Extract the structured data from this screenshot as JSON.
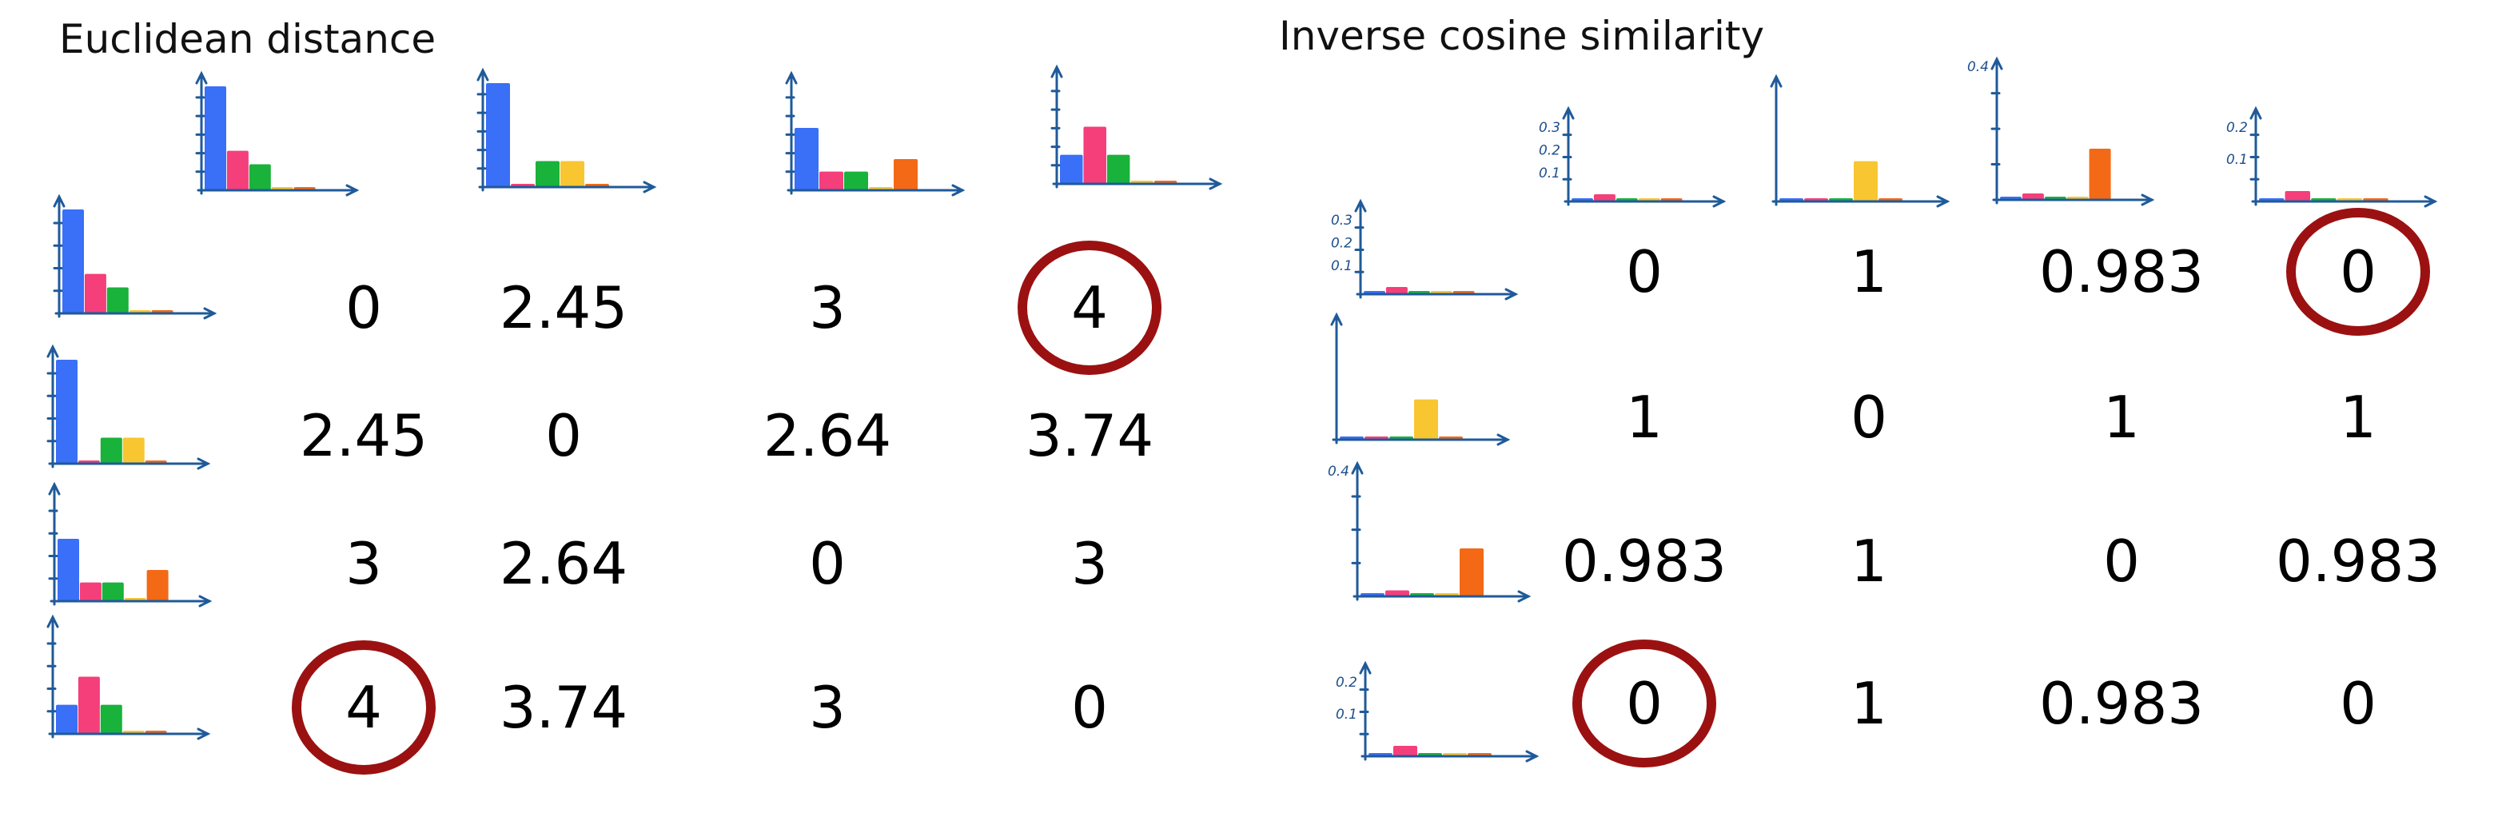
{
  "colors": {
    "blue": "#3a6ff7",
    "pink": "#f43f7a",
    "green": "#19b23b",
    "yellow": "#f8c630",
    "orange": "#f36916",
    "axis": "#1f5a99",
    "highlight": "#9b1111"
  },
  "profile_series": [
    "blue",
    "pink",
    "green",
    "yellow",
    "orange"
  ],
  "euclidean": {
    "title": "Euclidean distance",
    "profiles": [
      [
        1.0,
        0.38,
        0.25,
        0.02,
        0.02
      ],
      [
        1.0,
        0.03,
        0.25,
        0.25,
        0.02
      ],
      [
        0.6,
        0.18,
        0.18,
        0.02,
        0.3
      ],
      [
        0.28,
        0.55,
        0.28,
        0.02,
        0.02
      ]
    ],
    "matrix": [
      [
        "0",
        "2.45",
        "3",
        "4"
      ],
      [
        "2.45",
        "0",
        "2.64",
        "3.74"
      ],
      [
        "3",
        "2.64",
        "0",
        "3"
      ],
      [
        "4",
        "3.74",
        "3",
        "0"
      ]
    ],
    "circled": [
      [
        0,
        3
      ],
      [
        3,
        0
      ]
    ]
  },
  "cosine": {
    "title": "Inverse cosine similarity",
    "profiles": [
      [
        0.02,
        0.09,
        0.02,
        0.02,
        0.02
      ],
      [
        0.02,
        0.02,
        0.02,
        0.36,
        0.02
      ],
      [
        0.02,
        0.05,
        0.02,
        0.02,
        0.4
      ],
      [
        0.02,
        0.13,
        0.02,
        0.02,
        0.02
      ]
    ],
    "tick_labels": [
      [
        "0.3",
        "0.2",
        "0.1"
      ],
      [],
      [
        "0.4"
      ],
      [
        "0.2",
        "0.1"
      ]
    ],
    "matrix": [
      [
        "0",
        "1",
        "0.983",
        "0"
      ],
      [
        "1",
        "0",
        "1",
        "1"
      ],
      [
        "0.983",
        "1",
        "0",
        "0.983"
      ],
      [
        "0",
        "1",
        "0.983",
        "0"
      ]
    ],
    "circled": [
      [
        0,
        3
      ],
      [
        3,
        0
      ]
    ]
  }
}
